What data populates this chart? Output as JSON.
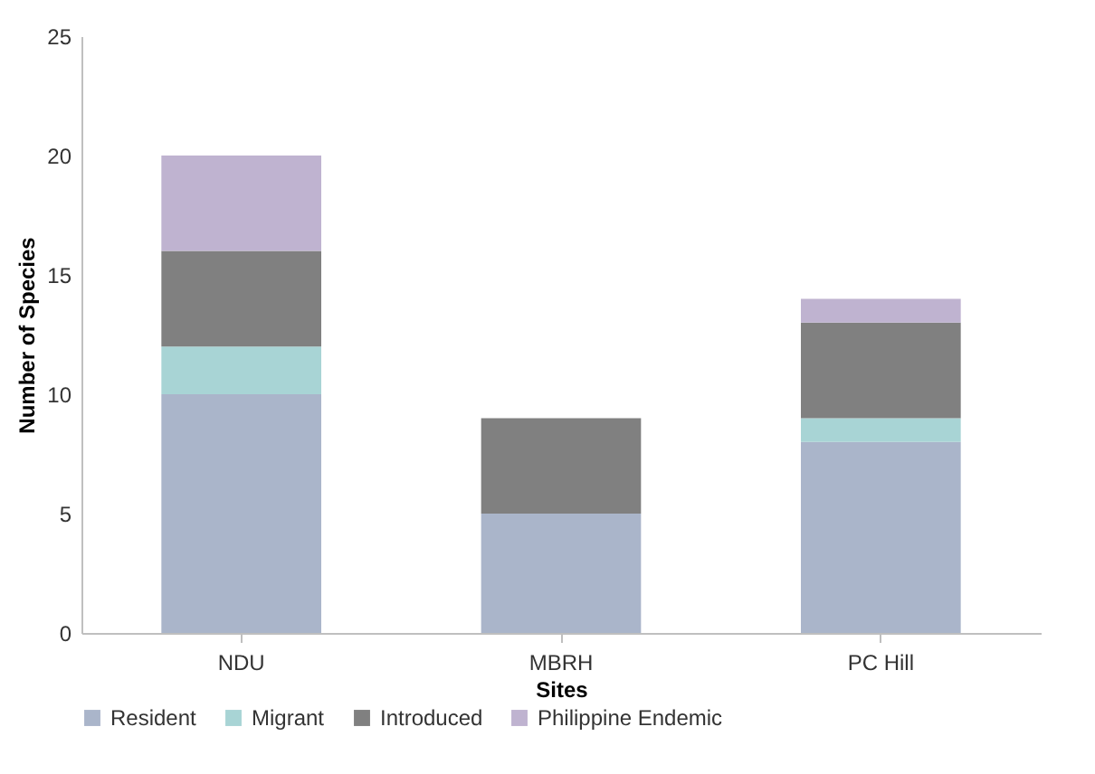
{
  "chart_data": {
    "type": "bar",
    "stacked": true,
    "xlabel": "Sites",
    "ylabel": "Number of Species",
    "categories": [
      "NDU",
      "MBRH",
      "PC Hill"
    ],
    "series": [
      {
        "name": "Resident",
        "color": "#aab5ca",
        "values": [
          10,
          5,
          8
        ]
      },
      {
        "name": "Migrant",
        "color": "#a8d4d5",
        "values": [
          2,
          0,
          1
        ]
      },
      {
        "name": "Introduced",
        "color": "#808080",
        "values": [
          4,
          4,
          4
        ]
      },
      {
        "name": "Philippine Endemic",
        "color": "#bfb3d0",
        "values": [
          4,
          0,
          1
        ]
      }
    ],
    "ylim": [
      0,
      25
    ],
    "yticks": [
      0,
      5,
      10,
      15,
      20,
      25
    ],
    "legend": "bottom"
  }
}
